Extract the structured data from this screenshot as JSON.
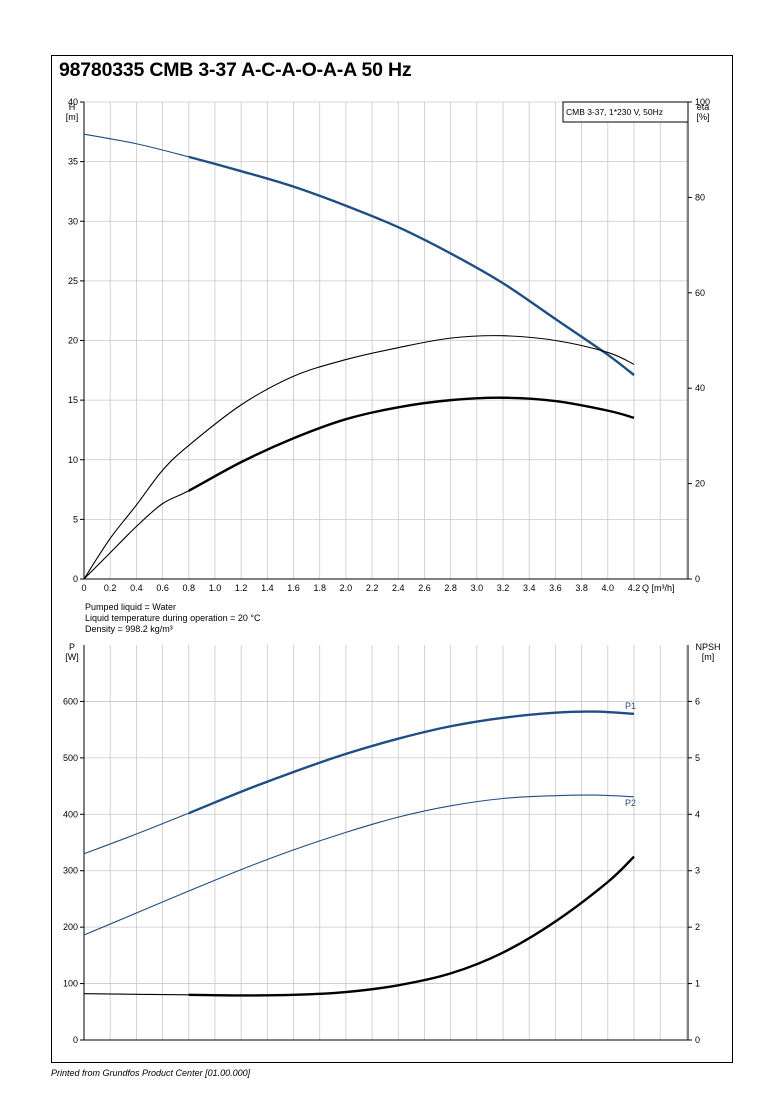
{
  "title": "98780335 CMB 3-37 A-C-A-O-A-A 50 Hz",
  "footer": "Printed from Grundfos Product Center [01.00.000]",
  "colors": {
    "curve_blue": "#1f4e85",
    "curve_black": "#000000",
    "grid": "#c8c8c8"
  },
  "chart_data": [
    {
      "type": "line",
      "legend_box": "CMB 3-37, 1*230 V, 50Hz",
      "xlabel": "Q [m³/h]",
      "x_ticks": [
        "0",
        "0.2",
        "0.4",
        "0.6",
        "0.8",
        "1.0",
        "1.2",
        "1.4",
        "1.6",
        "1.8",
        "2.0",
        "2.2",
        "2.4",
        "2.6",
        "2.8",
        "3.0",
        "3.2",
        "3.4",
        "3.6",
        "3.8",
        "4.0",
        "4.2"
      ],
      "xlim": [
        0,
        4.2
      ],
      "ylabel_left": "H",
      "ylabel_left_unit": "[m]",
      "ylim_left": [
        0,
        40
      ],
      "y_ticks_left": [
        "0",
        "5",
        "10",
        "15",
        "20",
        "25",
        "30",
        "35",
        "40"
      ],
      "ylabel_right": "eta",
      "ylabel_right_unit": "[%]",
      "ylim_right": [
        0,
        100
      ],
      "y_ticks_right": [
        "0",
        "20",
        "40",
        "60",
        "80",
        "100"
      ],
      "grid": true,
      "series": [
        {
          "axis": "left",
          "color": "#1f4e85",
          "bold_from": 0.8,
          "x": [
            0,
            0.4,
            0.8,
            1.2,
            1.6,
            2.0,
            2.4,
            2.8,
            3.2,
            3.6,
            4.0,
            4.2
          ],
          "y": [
            37.3,
            36.5,
            35.4,
            34.2,
            32.9,
            31.3,
            29.5,
            27.3,
            24.8,
            21.8,
            18.8,
            17.1
          ]
        },
        {
          "axis": "right",
          "color": "#000000",
          "bold_from": null,
          "x": [
            0,
            0.2,
            0.4,
            0.6,
            0.8,
            1.2,
            1.6,
            2.0,
            2.4,
            2.8,
            3.2,
            3.6,
            4.0,
            4.2
          ],
          "y": [
            0,
            8.5,
            15.5,
            22.8,
            28,
            36.5,
            42.5,
            46,
            48.5,
            50.5,
            51,
            50,
            47.5,
            45
          ]
        },
        {
          "axis": "right",
          "color": "#000000",
          "bold_from": 0.8,
          "x": [
            0,
            0.2,
            0.4,
            0.6,
            0.8,
            1.2,
            1.6,
            2.0,
            2.4,
            2.8,
            3.2,
            3.6,
            4.0,
            4.2
          ],
          "y": [
            0,
            5.5,
            11,
            15.8,
            18.5,
            24.5,
            29.5,
            33.5,
            36,
            37.5,
            38,
            37.3,
            35.3,
            33.8
          ]
        }
      ],
      "notes": [
        "Pumped liquid = Water",
        "Liquid temperature during operation = 20 °C",
        "Density = 998.2 kg/m³"
      ]
    },
    {
      "type": "line",
      "xlim": [
        0,
        4.2
      ],
      "ylabel_left": "P",
      "ylabel_left_unit": "[W]",
      "ylim_left": [
        0,
        700
      ],
      "y_ticks_left": [
        "0",
        "100",
        "200",
        "300",
        "400",
        "500",
        "600"
      ],
      "ylabel_right": "NPSH",
      "ylabel_right_unit": "[m]",
      "ylim_right": [
        0,
        7
      ],
      "y_ticks_right": [
        "0",
        "1",
        "2",
        "3",
        "4",
        "5",
        "6"
      ],
      "grid": true,
      "series": [
        {
          "name": "P1",
          "axis": "left",
          "color": "#1f4e85",
          "bold_from": 0.8,
          "x": [
            0,
            0.4,
            0.8,
            1.2,
            1.6,
            2.0,
            2.4,
            2.8,
            3.2,
            3.6,
            3.9,
            4.2
          ],
          "y": [
            330,
            365,
            402,
            440,
            475,
            507,
            534,
            556,
            571,
            580,
            582,
            578
          ]
        },
        {
          "name": "P2",
          "axis": "left",
          "color": "#1f4e85",
          "bold_from": null,
          "x": [
            0,
            0.4,
            0.8,
            1.2,
            1.6,
            2.0,
            2.4,
            2.8,
            3.2,
            3.6,
            3.9,
            4.2
          ],
          "y": [
            186,
            225,
            264,
            302,
            337,
            368,
            395,
            415,
            428,
            433,
            434,
            431
          ]
        },
        {
          "axis": "right",
          "color": "#000000",
          "bold_from": 0.8,
          "x": [
            0,
            0.4,
            0.8,
            1.2,
            1.6,
            2.0,
            2.4,
            2.8,
            3.2,
            3.6,
            4.0,
            4.2
          ],
          "y": [
            0.82,
            0.81,
            0.8,
            0.79,
            0.8,
            0.85,
            0.97,
            1.18,
            1.55,
            2.1,
            2.8,
            3.25
          ]
        }
      ]
    }
  ]
}
